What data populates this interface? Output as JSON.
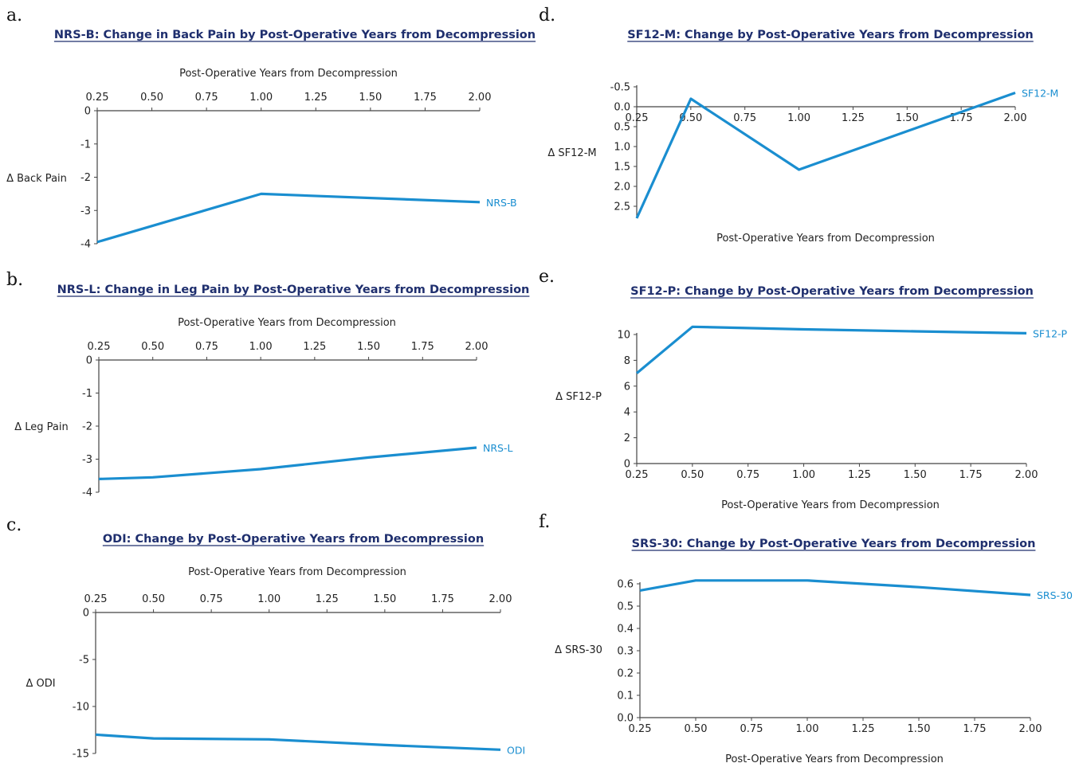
{
  "panels": [
    {
      "letter": "a.",
      "title": "NRS-B: Change in Back Pain by Post-Operative Years from Decompression",
      "x_label": "Post-Operative Years from Decompression",
      "y_label": "Δ Back Pain",
      "x_ticks": [
        "0.25",
        "0.50",
        "0.75",
        "1.00",
        "1.25",
        "1.50",
        "1.75",
        "2.00"
      ],
      "y_ticks": [
        "0",
        "-1",
        "-2",
        "-3",
        "-4"
      ],
      "series_label": "NRS-B"
    },
    {
      "letter": "b.",
      "title": "NRS-L: Change in Leg Pain by Post-Operative Years from Decompression",
      "x_label": "Post-Operative Years from Decompression",
      "y_label": "Δ Leg Pain",
      "x_ticks": [
        "0.25",
        "0.50",
        "0.75",
        "1.00",
        "1.25",
        "1.50",
        "1.75",
        "2.00"
      ],
      "y_ticks": [
        "0",
        "-1",
        "-2",
        "-3",
        "-4"
      ],
      "series_label": "NRS-L"
    },
    {
      "letter": "c.",
      "title": "ODI: Change by Post-Operative Years from Decompression",
      "x_label": "Post-Operative Years from Decompression",
      "y_label": "Δ ODI",
      "x_ticks": [
        "0.25",
        "0.50",
        "0.75",
        "1.00",
        "1.25",
        "1.50",
        "1.75",
        "2.00"
      ],
      "y_ticks": [
        "0",
        "-5",
        "-10",
        "-15"
      ],
      "series_label": "ODI"
    },
    {
      "letter": "d.",
      "title": "SF12-M: Change by Post-Operative Years from Decompression",
      "x_label": "Post-Operative Years from Decompression",
      "y_label": "Δ SF12-M",
      "x_ticks": [
        "0.25",
        "0.50",
        "0.75",
        "1.00",
        "1.25",
        "1.50",
        "1.75",
        "2.00"
      ],
      "y_ticks": [
        "2.5",
        "2.0",
        "1.5",
        "1.0",
        "0.5",
        "0.0",
        "-0.5"
      ],
      "series_label": "SF12-M"
    },
    {
      "letter": "e.",
      "title": "SF12-P: Change by Post-Operative Years from Decompression",
      "x_label": "Post-Operative Years from Decompression",
      "y_label": "Δ SF12-P",
      "x_ticks": [
        "0.25",
        "0.50",
        "0.75",
        "1.00",
        "1.25",
        "1.50",
        "1.75",
        "2.00"
      ],
      "y_ticks": [
        "10",
        "8",
        "6",
        "4",
        "2",
        "0"
      ],
      "series_label": "SF12-P"
    },
    {
      "letter": "f.",
      "title": "SRS-30: Change by Post-Operative Years from Decompression",
      "x_label": "Post-Operative Years from Decompression",
      "y_label": "Δ SRS-30",
      "x_ticks": [
        "0.25",
        "0.50",
        "0.75",
        "1.00",
        "1.25",
        "1.50",
        "1.75",
        "2.00"
      ],
      "y_ticks": [
        "0.6",
        "0.5",
        "0.4",
        "0.3",
        "0.2",
        "0.1",
        "0.0"
      ],
      "series_label": "SRS-30"
    }
  ],
  "chart_data": [
    {
      "type": "line",
      "title": "NRS-B: Change in Back Pain by Post-Operative Years from Decompression",
      "xlabel": "Post-Operative Years from Decompression",
      "ylabel": "Δ Back Pain",
      "xlim": [
        0.25,
        2.0
      ],
      "ylim": [
        -4,
        0
      ],
      "x_axis_position": "top",
      "grid": false,
      "color": "#1a8ed0",
      "series": [
        {
          "name": "NRS-B",
          "x": [
            0.25,
            1.0,
            2.0
          ],
          "y": [
            -3.95,
            -2.5,
            -2.75
          ]
        }
      ]
    },
    {
      "type": "line",
      "title": "NRS-L: Change in Leg Pain by Post-Operative Years from Decompression",
      "xlabel": "Post-Operative Years from Decompression",
      "ylabel": "Δ Leg Pain",
      "xlim": [
        0.25,
        2.0
      ],
      "ylim": [
        -4,
        0
      ],
      "x_axis_position": "top",
      "grid": false,
      "color": "#1a8ed0",
      "series": [
        {
          "name": "NRS-L",
          "x": [
            0.25,
            0.5,
            1.0,
            1.5,
            2.0
          ],
          "y": [
            -3.6,
            -3.55,
            -3.3,
            -2.95,
            -2.65
          ]
        }
      ]
    },
    {
      "type": "line",
      "title": "ODI: Change by Post-Operative Years from Decompression",
      "xlabel": "Post-Operative Years from Decompression",
      "ylabel": "Δ ODI",
      "xlim": [
        0.25,
        2.0
      ],
      "ylim": [
        -15,
        0
      ],
      "x_axis_position": "top",
      "grid": false,
      "color": "#1a8ed0",
      "series": [
        {
          "name": "ODI",
          "x": [
            0.25,
            0.5,
            1.0,
            1.5,
            2.0
          ],
          "y": [
            -13.0,
            -13.4,
            -13.5,
            -14.1,
            -14.6
          ]
        }
      ]
    },
    {
      "type": "line",
      "title": "SF12-M: Change by Post-Operative Years from Decompression",
      "xlabel": "Post-Operative Years from Decompression",
      "ylabel": "Δ SF12-M",
      "xlim": [
        0.25,
        2.0
      ],
      "ylim": [
        -0.5,
        2.8
      ],
      "x_axis_position": "zero",
      "grid": false,
      "color": "#1a8ed0",
      "series": [
        {
          "name": "SF12-M",
          "x": [
            0.25,
            0.5,
            1.0,
            2.0
          ],
          "y": [
            2.8,
            -0.2,
            1.58,
            -0.35
          ]
        }
      ]
    },
    {
      "type": "line",
      "title": "SF12-P: Change by Post-Operative Years from Decompression",
      "xlabel": "Post-Operative Years from Decompression",
      "ylabel": "Δ SF12-P",
      "xlim": [
        0.25,
        2.0
      ],
      "ylim": [
        0,
        10
      ],
      "x_axis_position": "bottom",
      "grid": false,
      "color": "#1a8ed0",
      "series": [
        {
          "name": "SF12-P",
          "x": [
            0.25,
            0.5,
            1.0,
            1.5,
            2.0
          ],
          "y": [
            7.0,
            10.6,
            10.4,
            10.25,
            10.1
          ]
        }
      ]
    },
    {
      "type": "line",
      "title": "SRS-30: Change by Post-Operative Years from Decompression",
      "xlabel": "Post-Operative Years from Decompression",
      "ylabel": "Δ SRS-30",
      "xlim": [
        0.25,
        2.0
      ],
      "ylim": [
        0,
        0.6
      ],
      "x_axis_position": "bottom",
      "grid": false,
      "color": "#1a8ed0",
      "series": [
        {
          "name": "SRS-30",
          "x": [
            0.25,
            0.5,
            1.0,
            1.5,
            2.0
          ],
          "y": [
            0.57,
            0.615,
            0.615,
            0.585,
            0.55
          ]
        }
      ]
    }
  ]
}
